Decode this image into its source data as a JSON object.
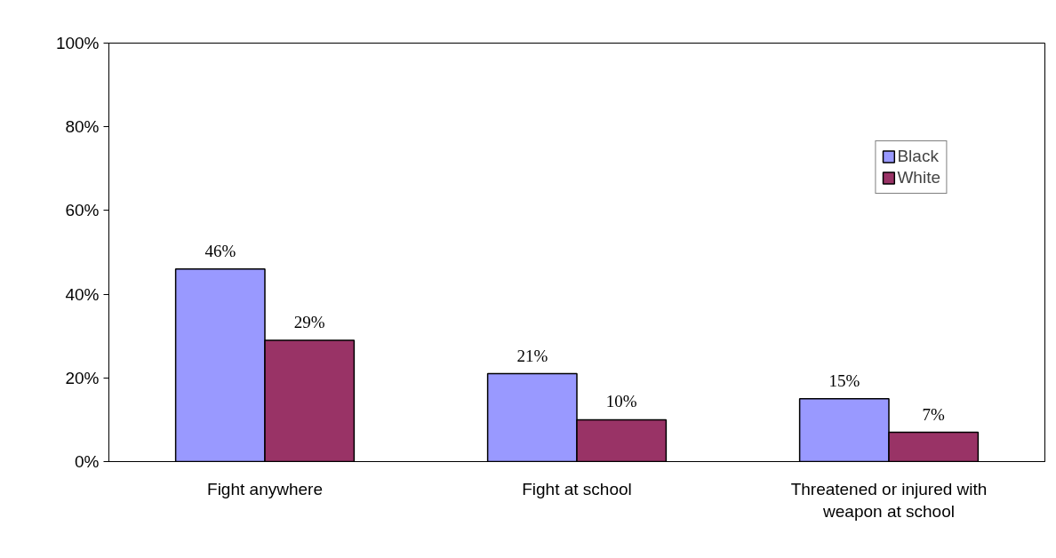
{
  "chart_data": {
    "type": "bar",
    "categories": [
      "Fight anywhere",
      "Fight at school",
      "Threatened or injured with weapon at school"
    ],
    "series": [
      {
        "name": "Black",
        "color": "#9999ff",
        "values": [
          46,
          21,
          15
        ],
        "value_labels": [
          "46%",
          "21%",
          "15%"
        ]
      },
      {
        "name": "White",
        "color": "#993366",
        "values": [
          29,
          10,
          7
        ],
        "value_labels": [
          "29%",
          "10%",
          "7%"
        ]
      }
    ],
    "ylim": [
      0,
      100
    ],
    "yticks": [
      {
        "value": 0,
        "label": "0%"
      },
      {
        "value": 20,
        "label": "20%"
      },
      {
        "value": 40,
        "label": "40%"
      },
      {
        "value": 60,
        "label": "60%"
      },
      {
        "value": 80,
        "label": "80%"
      },
      {
        "value": 100,
        "label": "100%"
      }
    ],
    "grid": false,
    "legend": "top right"
  }
}
